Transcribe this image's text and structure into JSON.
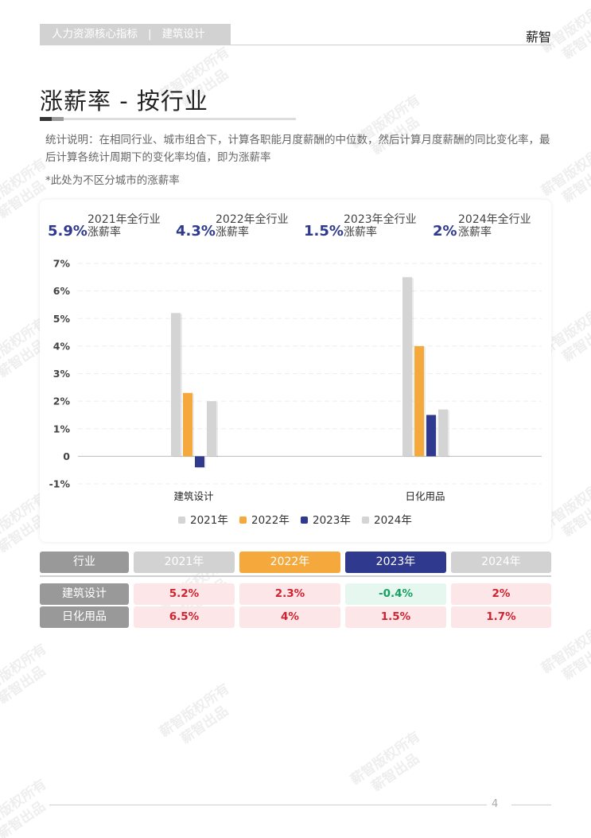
{
  "header": {
    "section": "人力资源核心指标",
    "separator": "|",
    "industry": "建筑设计",
    "brand": "薪智"
  },
  "page_title": "涨薪率 - 按行业",
  "notes": [
    "统计说明：在相同行业、城市组合下，计算各职能月度薪酬的中位数，然后计算月度薪酬的同比变化率，最后计算各统计周期下的变化率均值，即为涨薪率",
    "*此处为不区分城市的涨薪率"
  ],
  "summary": [
    {
      "value": "5.9%",
      "label_line1": "2021年全行业",
      "label_line2": "涨薪率"
    },
    {
      "value": "4.3%",
      "label_line1": "2022年全行业",
      "label_line2": "涨薪率"
    },
    {
      "value": "1.5%",
      "label_line1": "2023年全行业",
      "label_line2": "涨薪率"
    },
    {
      "value": "2%",
      "label_line1": "2024年全行业",
      "label_line2": "涨薪率"
    }
  ],
  "chart_data": {
    "type": "bar",
    "categories": [
      "建筑设计",
      "日化用品"
    ],
    "series": [
      {
        "name": "2021年",
        "values": [
          5.2,
          6.5
        ],
        "color": "#d4d4d4"
      },
      {
        "name": "2022年",
        "values": [
          2.3,
          4.0
        ],
        "color": "#f5a93d"
      },
      {
        "name": "2023年",
        "values": [
          -0.4,
          1.5
        ],
        "color": "#2f3a8f"
      },
      {
        "name": "2024年",
        "values": [
          2.0,
          1.7
        ],
        "color": "#d4d4d4"
      }
    ],
    "yticks": [
      "7%",
      "6%",
      "5%",
      "4%",
      "3%",
      "2%",
      "1%",
      "0",
      "-1%"
    ],
    "ylim": [
      -1,
      7
    ],
    "grid": true,
    "legend": "bottom",
    "title": "",
    "xlabel": "",
    "ylabel": ""
  },
  "table": {
    "header": [
      "行业",
      "2021年",
      "2022年",
      "2023年",
      "2024年"
    ],
    "header_colors": [
      "#999999",
      "#d2d2d2",
      "#f5a93d",
      "#2f3a8f",
      "#d2d2d2"
    ],
    "rows": [
      {
        "industry": "建筑设计",
        "values": [
          "5.2%",
          "2.3%",
          "-0.4%",
          "2%"
        ]
      },
      {
        "industry": "日化用品",
        "values": [
          "6.5%",
          "4%",
          "1.5%",
          "1.7%"
        ]
      }
    ],
    "positive_bg": "#fde6e8",
    "positive_fg": "#d0232f",
    "negative_bg": "#e6f7ef",
    "negative_fg": "#1aa062"
  },
  "footer": {
    "page_number": "4"
  },
  "watermark": {
    "line1": "薪智版权所有",
    "line2": "薪智出品"
  }
}
